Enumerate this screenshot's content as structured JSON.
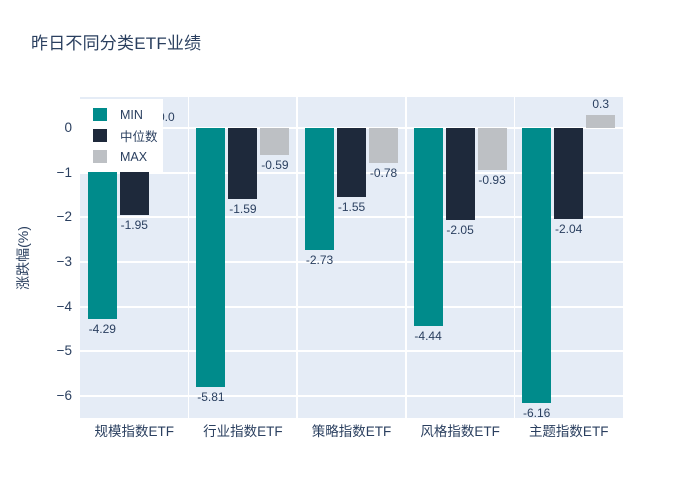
{
  "title": {
    "text": "昨日不同分类ETF业绩"
  },
  "chart_data": {
    "type": "bar",
    "title": "昨日不同分类ETF业绩",
    "xlabel": "",
    "ylabel": "涨跌幅(%)",
    "categories": [
      "规模指数ETF",
      "行业指数ETF",
      "策略指数ETF",
      "风格指数ETF",
      "主题指数ETF"
    ],
    "series": [
      {
        "name": "MIN",
        "color": "#008b8b",
        "values": [
          -4.29,
          -5.81,
          -2.73,
          -4.44,
          -6.16
        ],
        "labels": [
          "-4.29",
          "-5.81",
          "-2.73",
          "-4.44",
          "-6.16"
        ]
      },
      {
        "name": "中位数",
        "color": "#1e293b",
        "values": [
          -1.95,
          -1.59,
          -1.55,
          -2.05,
          -2.04
        ],
        "labels": [
          "-1.95",
          "-1.59",
          "-1.55",
          "-2.05",
          "-2.04"
        ]
      },
      {
        "name": "MAX",
        "color": "#bdc0c4",
        "values": [
          0.0,
          -0.59,
          -0.78,
          -0.93,
          0.3
        ],
        "labels": [
          "0.0",
          "-0.59",
          "-0.78",
          "-0.93",
          "0.3"
        ]
      }
    ],
    "ylim": [
      0.7,
      -6.5
    ],
    "yticks": {
      "values": [
        0,
        -1,
        -2,
        -3,
        -4,
        -5,
        -6
      ],
      "labels": [
        "0",
        "−1",
        "−2",
        "−3",
        "−4",
        "−5",
        "−6"
      ]
    },
    "legend": {
      "position": "top-left",
      "entries": [
        "MIN",
        "中位数",
        "MAX"
      ]
    },
    "grid": true,
    "colors": {
      "plot_bg": "#e5ecf6",
      "grid": "#ffffff",
      "text": "#2a3f5f",
      "page_bg": "#ffffff"
    }
  }
}
